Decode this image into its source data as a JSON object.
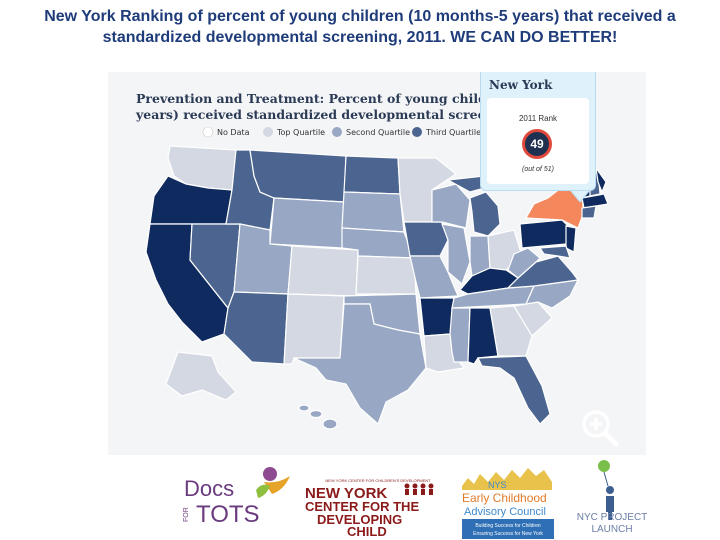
{
  "slide": {
    "title": "New York Ranking of percent of young children (10 months-5 years) that received a standardized developmental screening, 2011. WE CAN DO BETTER!"
  },
  "map": {
    "panel_title_line1": "Prevention and Treatment: Percent of young childre",
    "panel_title_line2": "years) received standardized developmental screen",
    "legend": [
      {
        "label": "No Data",
        "color": "#ffffff"
      },
      {
        "label": "Top Quartile",
        "color": "#d3d8e2"
      },
      {
        "label": "Second Quartile",
        "color": "#98a8c4"
      },
      {
        "label": "Third Quartile",
        "color": "#4c6590"
      }
    ],
    "fourth_quartile_color": "#0f2a5e",
    "highlight_color": "#f4875b",
    "zoom_icon": "zoom-in-icon"
  },
  "popup": {
    "state": "New York",
    "rank_label": "2011 Rank",
    "rank_value": "49",
    "rank_out_of": "(out of 51)"
  },
  "logos": {
    "docs_for_tots": {
      "line1": "Docs",
      "for": "FOR",
      "line2": "TOTS"
    },
    "nycdc": {
      "small": "NEW YORK CENTER FOR CHILDREN'S DEVELOPMENT",
      "line1": "NEW YORK",
      "line2": "CENTER FOR THE",
      "line3": "DEVELOPING",
      "line4": "CHILD"
    },
    "nys_council": {
      "nys": "NYS",
      "line1": "Early Childhood",
      "line2": "Advisory Council",
      "tag1": "Building Success for Children",
      "tag2": "Ensuring Success for New York"
    },
    "nyc_launch": {
      "line1": "NYC PROJECT",
      "line2": "LAUNCH"
    }
  }
}
